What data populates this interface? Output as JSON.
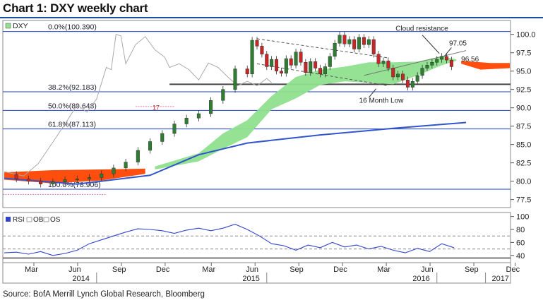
{
  "header": {
    "title": "Chart 1: DXY weekly chart"
  },
  "footer": {
    "source": "Source: BofA Merrill Lynch Global Research, Bloomberg"
  },
  "colors": {
    "price_up": "#2e7d32",
    "price_down": "#c62828",
    "cloud_bull": "#8fe08f",
    "cloud_bear": "#ff4500",
    "ma_line": "#3355cc",
    "lagging_line": "#aaaaaa",
    "fib_line": "#1f3fc8",
    "rsi_line": "#3344cc",
    "support_line": "#444444"
  },
  "chart_data": [
    {
      "type": "line",
      "title": "DXY",
      "legend": [
        "DXY"
      ],
      "legend_position": "top-left",
      "x_ticks": [
        "Mar",
        "Jun",
        "Sep",
        "Dec",
        "Mar",
        "Jun",
        "Sep",
        "Dec",
        "Mar",
        "Jun",
        "Sep",
        "Dec"
      ],
      "year_labels": [
        "2014",
        "2015",
        "2016",
        "2017"
      ],
      "y_ticks": [
        100.0,
        97.5,
        95.0,
        92.5,
        90.0,
        87.5,
        85.0,
        82.5,
        80.0,
        77.5
      ],
      "y_tick_labels": [
        "100.0",
        "97.5",
        "95.0",
        "92.5",
        "90.0",
        "87.5",
        "85.0",
        "82.5",
        "80.0",
        "77.5"
      ],
      "ylim": [
        76.5,
        101.8
      ],
      "fib_levels": [
        {
          "label": "0.0%(100.390)",
          "value": 100.39
        },
        {
          "label": "38.2%(92.183)",
          "value": 92.183
        },
        {
          "label": "50.0%(89.648)",
          "value": 89.648
        },
        {
          "label": "61.8%(87.113)",
          "value": 87.113
        },
        {
          "label": "100.0%(78.906)",
          "value": 78.906
        }
      ],
      "horizontal_support": 93.2,
      "annotations": [
        {
          "text": "Cloud resistance"
        },
        {
          "text": "97.05",
          "value": 97.05
        },
        {
          "text": "96.56",
          "value": 96.56
        },
        {
          "text": "16 Month Low"
        },
        {
          "text": "17"
        }
      ],
      "price_close": [
        [
          0,
          80.9
        ],
        [
          5,
          80.3
        ],
        [
          10,
          80.0
        ],
        [
          15,
          79.6
        ],
        [
          20,
          79.9
        ],
        [
          25,
          80.2
        ],
        [
          30,
          80.3
        ],
        [
          35,
          80.5
        ],
        [
          40,
          81.0
        ],
        [
          45,
          81.8
        ],
        [
          50,
          82.6
        ],
        [
          55,
          84.2
        ],
        [
          60,
          85.4
        ],
        [
          65,
          86.5
        ],
        [
          70,
          87.8
        ],
        [
          75,
          88.6
        ],
        [
          80,
          89.2
        ],
        [
          85,
          91.0
        ],
        [
          90,
          92.5
        ],
        [
          95,
          95.3
        ],
        [
          100,
          94.6
        ],
        [
          102,
          99.2
        ],
        [
          104,
          98.4
        ],
        [
          106,
          97.3
        ],
        [
          108,
          95.6
        ],
        [
          110,
          96.6
        ],
        [
          112,
          95.0
        ],
        [
          114,
          94.7
        ],
        [
          116,
          96.7
        ],
        [
          118,
          95.8
        ],
        [
          120,
          97.6
        ],
        [
          122,
          96.2
        ],
        [
          124,
          94.8
        ],
        [
          126,
          96.3
        ],
        [
          128,
          95.4
        ],
        [
          130,
          94.6
        ],
        [
          132,
          95.6
        ],
        [
          134,
          97.0
        ],
        [
          136,
          98.8
        ],
        [
          138,
          99.9
        ],
        [
          140,
          98.7
        ],
        [
          142,
          99.3
        ],
        [
          144,
          98.0
        ],
        [
          146,
          99.6
        ],
        [
          148,
          98.6
        ],
        [
          150,
          99.3
        ],
        [
          152,
          97.3
        ],
        [
          154,
          96.0
        ],
        [
          156,
          96.4
        ],
        [
          158,
          95.4
        ],
        [
          160,
          94.2
        ],
        [
          162,
          94.6
        ],
        [
          164,
          93.8
        ],
        [
          166,
          92.8
        ],
        [
          168,
          93.6
        ],
        [
          170,
          94.4
        ],
        [
          172,
          95.4
        ],
        [
          174,
          95.8
        ],
        [
          176,
          96.2
        ],
        [
          178,
          96.6
        ],
        [
          180,
          97.0
        ],
        [
          182,
          96.5
        ],
        [
          184,
          95.6
        ]
      ],
      "cloud": [
        {
          "name": "bull_cloud",
          "upper": [
            [
              62,
              82.0
            ],
            [
              80,
              83.8
            ],
            [
              90,
              86.5
            ],
            [
              100,
              88.3
            ],
            [
              110,
              91.6
            ],
            [
              120,
              94.2
            ],
            [
              130,
              95.2
            ],
            [
              140,
              95.6
            ],
            [
              150,
              96.2
            ],
            [
              160,
              96.2
            ],
            [
              170,
              96.3
            ],
            [
              180,
              97.0
            ],
            [
              186,
              96.6
            ]
          ],
          "lower": [
            [
              62,
              81.6
            ],
            [
              80,
              82.7
            ],
            [
              90,
              84.4
            ],
            [
              100,
              86.0
            ],
            [
              110,
              89.8
            ],
            [
              120,
              91.3
            ],
            [
              130,
              93.1
            ],
            [
              140,
              93.6
            ],
            [
              150,
              93.4
            ],
            [
              160,
              93.2
            ],
            [
              170,
              94.4
            ],
            [
              180,
              95.8
            ],
            [
              186,
              96.4
            ]
          ]
        },
        {
          "name": "bear_cloud",
          "upper": [
            [
              0,
              81.2
            ],
            [
              20,
              81.5
            ],
            [
              40,
              81.6
            ],
            [
              58,
              81.7
            ]
          ],
          "lower": [
            [
              0,
              80.2
            ],
            [
              20,
              79.7
            ],
            [
              40,
              80.1
            ],
            [
              58,
              81.0
            ]
          ]
        },
        {
          "name": "bear_cloud_future",
          "upper": [
            [
              188,
              96.4
            ],
            [
              200,
              96.1
            ],
            [
              208,
              96.1
            ]
          ],
          "lower": [
            [
              188,
              96.0
            ],
            [
              196,
              95.2
            ],
            [
              208,
              95.4
            ]
          ]
        }
      ],
      "moving_average": [
        [
          0,
          80.4
        ],
        [
          30,
          79.6
        ],
        [
          60,
          80.8
        ],
        [
          80,
          83.6
        ],
        [
          100,
          85.2
        ],
        [
          130,
          86.3
        ],
        [
          160,
          87.2
        ],
        [
          190,
          88.0
        ]
      ],
      "lagging_line": [
        [
          0,
          81.3
        ],
        [
          8,
          80.7
        ],
        [
          14,
          82.4
        ],
        [
          20,
          85.3
        ],
        [
          26,
          88.3
        ],
        [
          30,
          90.4
        ],
        [
          34,
          89.4
        ],
        [
          38,
          91.2
        ],
        [
          42,
          95.5
        ],
        [
          44,
          95.2
        ],
        [
          46,
          100.0
        ],
        [
          48,
          99.8
        ],
        [
          50,
          96.0
        ],
        [
          54,
          98.6
        ],
        [
          58,
          99.7
        ],
        [
          62,
          97.9
        ],
        [
          66,
          96.9
        ],
        [
          68,
          95.5
        ],
        [
          72,
          96.0
        ],
        [
          76,
          95.2
        ],
        [
          80,
          93.8
        ],
        [
          84,
          96.1
        ],
        [
          88,
          95.5
        ],
        [
          92,
          94.2
        ],
        [
          96,
          93.0
        ],
        [
          100,
          93.6
        ],
        [
          104,
          93.0
        ],
        [
          108,
          94.0
        ],
        [
          110,
          93.4
        ]
      ],
      "channel_upper": [
        [
          104,
          99.4
        ],
        [
          158,
          96.8
        ]
      ],
      "channel_lower": [
        [
          104,
          96.0
        ],
        [
          158,
          93.0
        ]
      ],
      "rising_trend": [
        [
          148,
          94.4
        ],
        [
          190,
          97.8
        ]
      ]
    },
    {
      "type": "line",
      "title": "RSI",
      "legend": [
        "RSI",
        "OB",
        "OS"
      ],
      "legend_position": "top-left",
      "y_ticks": [
        40,
        60,
        80,
        100
      ],
      "y_tick_labels": [
        "40",
        "60",
        "80",
        "100"
      ],
      "ylim": [
        30,
        105
      ],
      "overbought": 70,
      "oversold": 30,
      "mid_dashed": 50,
      "values": [
        [
          0,
          44
        ],
        [
          5,
          45
        ],
        [
          10,
          42
        ],
        [
          15,
          46
        ],
        [
          20,
          40
        ],
        [
          25,
          43
        ],
        [
          30,
          48
        ],
        [
          35,
          58
        ],
        [
          40,
          64
        ],
        [
          45,
          70
        ],
        [
          50,
          76
        ],
        [
          55,
          81
        ],
        [
          60,
          80
        ],
        [
          65,
          78
        ],
        [
          70,
          74
        ],
        [
          75,
          79
        ],
        [
          80,
          82
        ],
        [
          85,
          78
        ],
        [
          90,
          82
        ],
        [
          95,
          88
        ],
        [
          100,
          80
        ],
        [
          105,
          70
        ],
        [
          110,
          58
        ],
        [
          115,
          55
        ],
        [
          120,
          48
        ],
        [
          125,
          56
        ],
        [
          130,
          52
        ],
        [
          135,
          60
        ],
        [
          140,
          53
        ],
        [
          145,
          56
        ],
        [
          150,
          50
        ],
        [
          155,
          54
        ],
        [
          160,
          48
        ],
        [
          165,
          44
        ],
        [
          170,
          51
        ],
        [
          175,
          46
        ],
        [
          180,
          58
        ],
        [
          185,
          52
        ]
      ]
    }
  ]
}
